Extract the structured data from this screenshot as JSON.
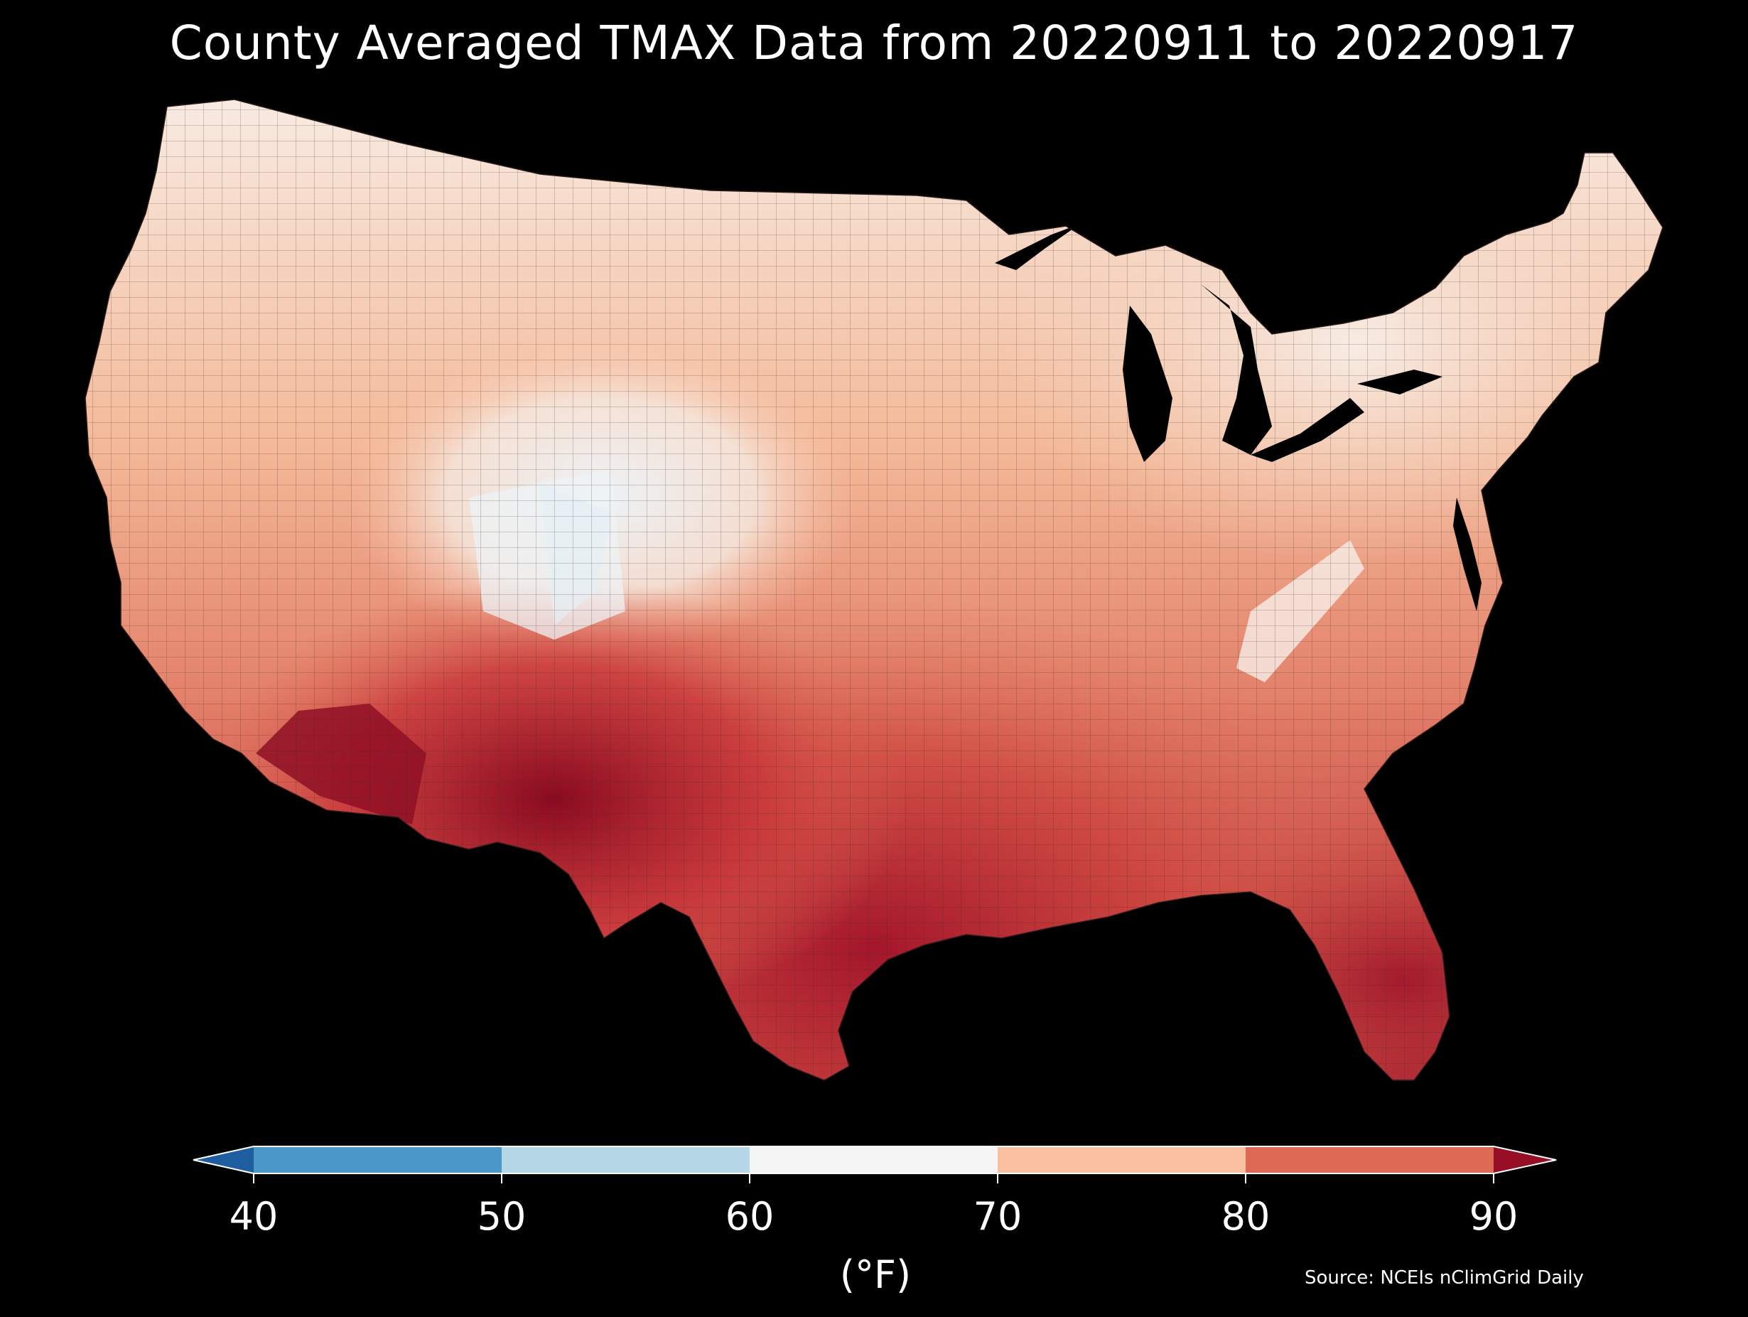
{
  "title": "County Averaged TMAX Data from 20220911 to 20220917",
  "colorbar": {
    "ticks": [
      "40",
      "50",
      "60",
      "70",
      "80",
      "90"
    ],
    "unit": "(°F)",
    "colors": {
      "below_40": "#1f5e9e",
      "40_50": "#4b97c7",
      "50_60": "#b6d7e8",
      "60_70": "#f5f5f5",
      "70_80": "#f9c0a2",
      "80_90": "#de6a55",
      "above_90": "#960f25"
    }
  },
  "source": "Source: NCEIs nClimGrid Daily",
  "map": {
    "type": "choropleth",
    "variable": "TMAX",
    "units": "°F",
    "land_color_range": [
      "#edf3f7",
      "#8a0a20"
    ],
    "water_color": "#000000"
  }
}
